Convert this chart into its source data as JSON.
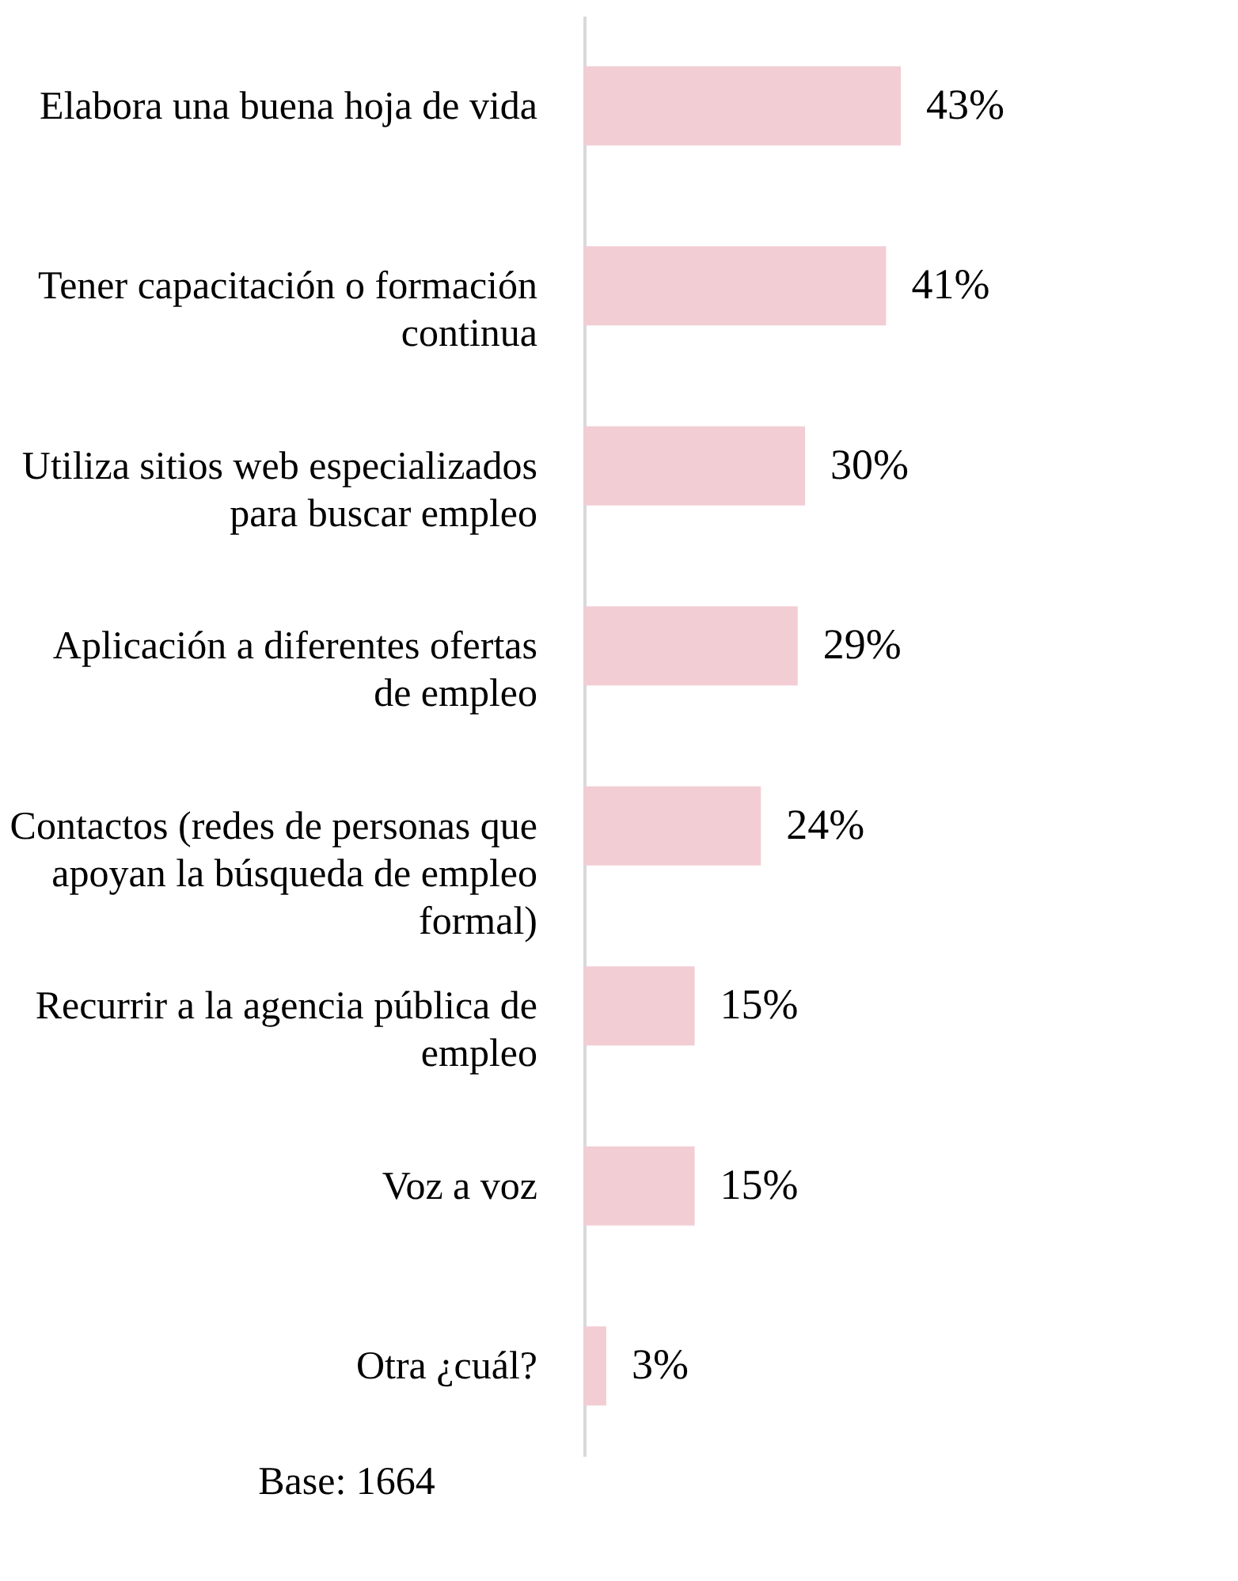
{
  "chart_data": {
    "type": "bar",
    "orientation": "horizontal",
    "categories": [
      "Elabora una buena hoja de vida",
      "Tener capacitación o formación continua",
      "Utiliza sitios web especializados para buscar empleo",
      "Aplicación a diferentes ofertas de empleo",
      "Contactos (redes de personas que apoyan la búsqueda de empleo formal)",
      "Recurrir a la agencia pública de empleo",
      "Voz a voz",
      "Otra ¿cuál?"
    ],
    "values": [
      43,
      41,
      30,
      29,
      24,
      15,
      15,
      3
    ],
    "value_labels": [
      "43%",
      "41%",
      "30%",
      "29%",
      "24%",
      "15%",
      "15%",
      "3%"
    ],
    "color": "#f2cdd3",
    "grid": false,
    "tick_labels": "y",
    "annotations": [
      "Base: 1664"
    ]
  }
}
